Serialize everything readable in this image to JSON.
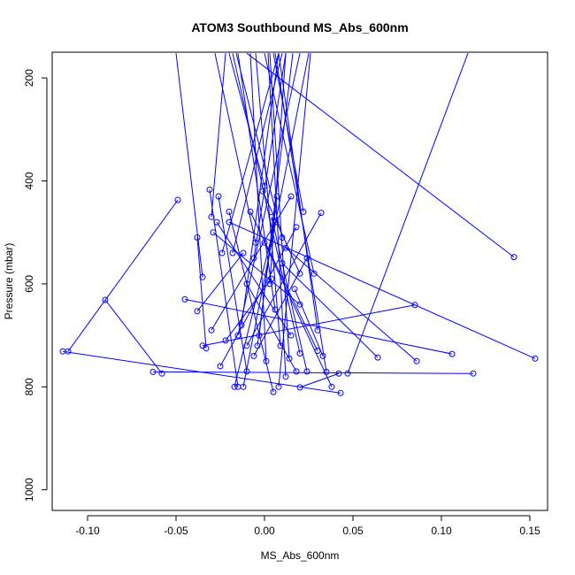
{
  "chart_data": {
    "type": "line",
    "title": "ATOM3 Southbound MS_Abs_600nm",
    "xlabel": "MS_Abs_600nm",
    "ylabel": "Pressure (mbar)",
    "xlim": [
      -0.12,
      0.16
    ],
    "ylim": [
      1040,
      150
    ],
    "y_reversed": true,
    "grid": false,
    "legend": "none",
    "line_color": "#0000ff",
    "marker": "open-circle",
    "xticks": [
      -0.1,
      -0.05,
      0.0,
      0.05,
      0.1,
      0.15
    ],
    "xtick_labels": [
      "-0.10",
      "-0.05",
      "0.00",
      "0.05",
      "0.10",
      "0.15"
    ],
    "yticks": [
      200,
      400,
      600,
      800,
      1000
    ],
    "ytick_labels": [
      "200",
      "400",
      "600",
      "800",
      "1000"
    ],
    "profiles": [
      {
        "x": [
          -0.049,
          -0.111
        ],
        "y": [
          437,
          731
        ]
      },
      {
        "x": [
          -0.09,
          -0.058
        ],
        "y": [
          631,
          774
        ]
      },
      {
        "x": [
          -0.114,
          0.043
        ],
        "y": [
          731,
          812
        ]
      },
      {
        "x": [
          0.141,
          -0.01
        ],
        "y": [
          548,
          152
        ]
      },
      {
        "x": [
          0.153,
          -0.02
        ],
        "y": [
          745,
          480
        ]
      },
      {
        "x": [
          0.118,
          -0.063
        ],
        "y": [
          774,
          771
        ]
      },
      {
        "x": [
          0.106,
          -0.045
        ],
        "y": [
          736,
          630
        ]
      },
      {
        "x": [
          0.086,
          0.012
        ],
        "y": [
          750,
          530
        ]
      },
      {
        "x": [
          0.085,
          -0.035
        ],
        "y": [
          641,
          720
        ]
      },
      {
        "x": [
          0.064,
          0.01
        ],
        "y": [
          743,
          560
        ]
      },
      {
        "x": [
          0.047,
          0.115
        ],
        "y": [
          774,
          152
        ]
      },
      {
        "x": [
          0.042,
          0.02
        ],
        "y": [
          774,
          801
        ]
      },
      {
        "x": [
          -0.031,
          -0.015
        ],
        "y": [
          417,
          800
        ]
      },
      {
        "x": [
          -0.033,
          -0.038
        ],
        "y": [
          725,
          510
        ]
      },
      {
        "x": [
          -0.035,
          -0.05
        ],
        "y": [
          587,
          152
        ]
      },
      {
        "x": [
          -0.026,
          -0.01
        ],
        "y": [
          430,
          770
        ]
      },
      {
        "x": [
          -0.02,
          0.005
        ],
        "y": [
          460,
          810
        ]
      },
      {
        "x": [
          -0.018,
          0.01
        ],
        "y": [
          540,
          152
        ]
      },
      {
        "x": [
          -0.015,
          0.02
        ],
        "y": [
          700,
          152
        ]
      },
      {
        "x": [
          -0.012,
          0.025
        ],
        "y": [
          800,
          152
        ]
      },
      {
        "x": [
          -0.008,
          0.03
        ],
        "y": [
          460,
          730
        ]
      },
      {
        "x": [
          -0.005,
          -0.028
        ],
        "y": [
          520,
          152
        ]
      },
      {
        "x": [
          0.0,
          -0.02
        ],
        "y": [
          410,
          152
        ]
      },
      {
        "x": [
          0.003,
          0.012
        ],
        "y": [
          600,
          152
        ]
      },
      {
        "x": [
          0.006,
          -0.015
        ],
        "y": [
          650,
          152
        ]
      },
      {
        "x": [
          0.009,
          -0.005
        ],
        "y": [
          720,
          152
        ]
      },
      {
        "x": [
          0.012,
          0.002
        ],
        "y": [
          780,
          152
        ]
      },
      {
        "x": [
          0.015,
          -0.03
        ],
        "y": [
          430,
          690
        ]
      },
      {
        "x": [
          0.018,
          -0.025
        ],
        "y": [
          490,
          760
        ]
      },
      {
        "x": [
          0.022,
          0.005
        ],
        "y": [
          460,
          152
        ]
      },
      {
        "x": [
          0.028,
          0.0
        ],
        "y": [
          580,
          152
        ]
      },
      {
        "x": [
          0.032,
          -0.01
        ],
        "y": [
          462,
          720
        ]
      },
      {
        "x": [
          0.035,
          0.006
        ],
        "y": [
          771,
          152
        ]
      },
      {
        "x": [
          0.02,
          -0.018
        ],
        "y": [
          735,
          152
        ]
      },
      {
        "x": [
          -0.024,
          0.008
        ],
        "y": [
          540,
          152
        ]
      },
      {
        "x": [
          -0.027,
          0.015
        ],
        "y": [
          480,
          700
        ]
      },
      {
        "x": [
          -0.029,
          0.02
        ],
        "y": [
          500,
          640
        ]
      },
      {
        "x": [
          -0.03,
          -0.022
        ],
        "y": [
          470,
          152
        ]
      },
      {
        "x": [
          -0.038,
          -0.012
        ],
        "y": [
          653,
          540
        ]
      },
      {
        "x": [
          -0.013,
          0.008
        ],
        "y": [
          680,
          152
        ]
      },
      {
        "x": [
          -0.01,
          0.018
        ],
        "y": [
          600,
          770
        ]
      },
      {
        "x": [
          -0.006,
          0.012
        ],
        "y": [
          550,
          152
        ]
      },
      {
        "x": [
          -0.003,
          0.016
        ],
        "y": [
          700,
          152
        ]
      },
      {
        "x": [
          0.001,
          -0.008
        ],
        "y": [
          750,
          152
        ]
      },
      {
        "x": [
          0.004,
          0.024
        ],
        "y": [
          470,
          770
        ]
      },
      {
        "x": [
          0.007,
          -0.004
        ],
        "y": [
          430,
          720
        ]
      },
      {
        "x": [
          0.01,
          -0.016
        ],
        "y": [
          510,
          152
        ]
      },
      {
        "x": [
          0.014,
          0.003
        ],
        "y": [
          745,
          152
        ]
      },
      {
        "x": [
          0.024,
          -0.006
        ],
        "y": [
          550,
          740
        ]
      },
      {
        "x": [
          0.03,
          0.008
        ],
        "y": [
          690,
          152
        ]
      },
      {
        "x": [
          -0.017,
          0.006
        ],
        "y": [
          800,
          480
        ]
      },
      {
        "x": [
          0.008,
          0.026
        ],
        "y": [
          800,
          152
        ]
      },
      {
        "x": [
          0.038,
          0.0
        ],
        "y": [
          800,
          520
        ]
      },
      {
        "x": [
          -0.001,
          0.02
        ],
        "y": [
          420,
          580
        ]
      },
      {
        "x": [
          -0.022,
          0.004
        ],
        "y": [
          710,
          590
        ]
      },
      {
        "x": [
          0.017,
          0.033
        ],
        "y": [
          610,
          740
        ]
      }
    ]
  }
}
